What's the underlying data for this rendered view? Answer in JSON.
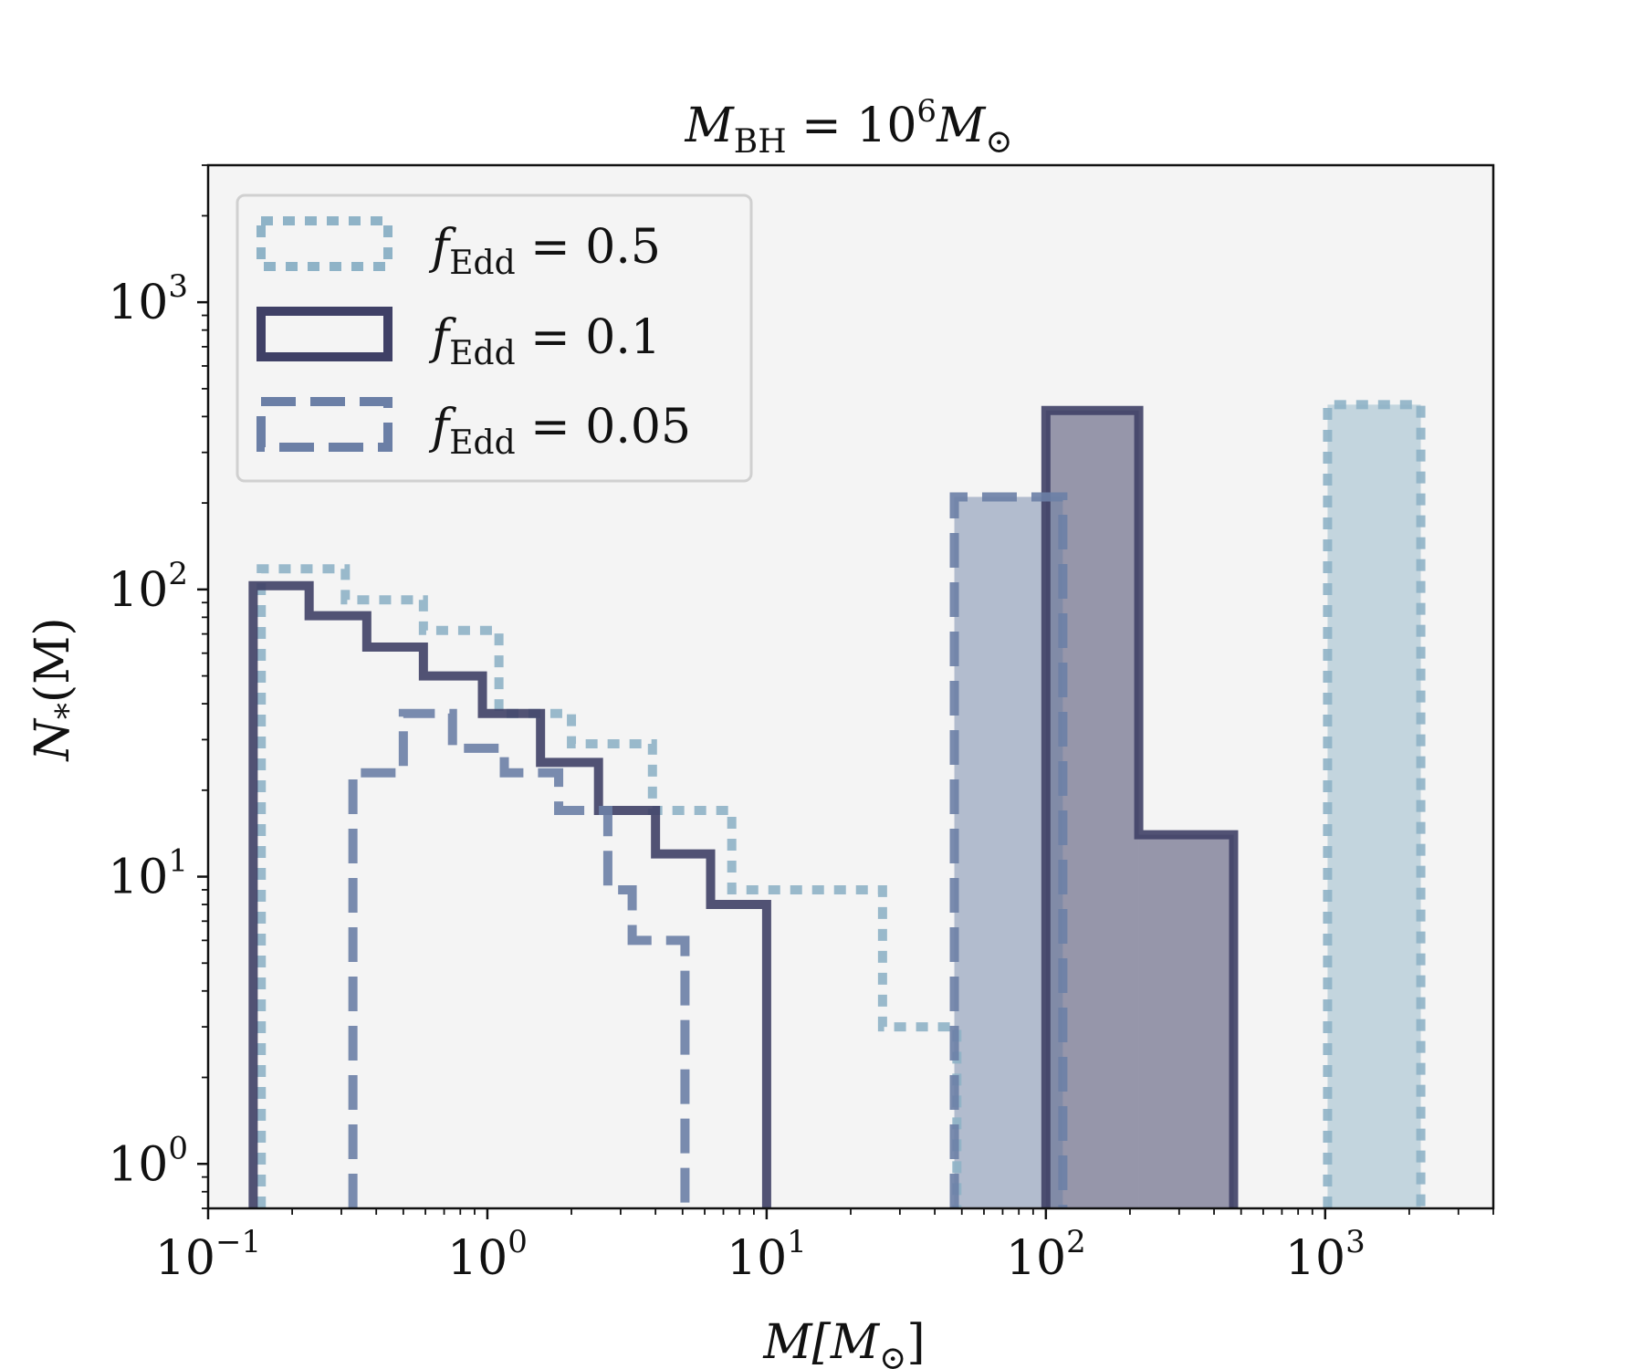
{
  "chart_data": {
    "type": "histogram",
    "title": {
      "base": "M",
      "sub": "BH",
      "mid": " = 10",
      "sup": "6",
      "end": "M",
      "end_sub": "⊙"
    },
    "xlabel": {
      "base": "M[M",
      "sub": "⊙",
      "end": "]"
    },
    "ylabel": {
      "base": "N",
      "sub": "*",
      "end": "(M)"
    },
    "xscale": "log",
    "yscale": "log",
    "xlim": [
      0.1,
      4000
    ],
    "ylim": [
      0.7,
      3000
    ],
    "x_ticks": [
      {
        "value": 0.1,
        "base": "10",
        "exp": "−1"
      },
      {
        "value": 1,
        "base": "10",
        "exp": "0"
      },
      {
        "value": 10,
        "base": "10",
        "exp": "1"
      },
      {
        "value": 100,
        "base": "10",
        "exp": "2"
      },
      {
        "value": 1000,
        "base": "10",
        "exp": "3"
      }
    ],
    "y_ticks": [
      {
        "value": 1,
        "base": "10",
        "exp": "0"
      },
      {
        "value": 10,
        "base": "10",
        "exp": "1"
      },
      {
        "value": 100,
        "base": "10",
        "exp": "2"
      },
      {
        "value": 1000,
        "base": "10",
        "exp": "3"
      }
    ],
    "legend_position": "top-left",
    "series": [
      {
        "name": "f_Edd = 0.5",
        "label_base": "f",
        "label_sub": "Edd",
        "label_val": " = 0.5",
        "style": "dotted",
        "color": "#8fb3c7",
        "unfilled_edges": [
          0.155,
          0.31,
          0.59,
          1.1,
          2.0,
          3.9,
          7.5,
          26,
          48
        ],
        "unfilled_values": [
          118,
          92,
          72,
          37,
          29,
          17,
          9,
          3
        ],
        "filled": [
          {
            "left": 1020,
            "right": 2200,
            "value": 440
          }
        ]
      },
      {
        "name": "f_Edd = 0.1",
        "label_base": "f",
        "label_sub": "Edd",
        "label_val": " = 0.1",
        "style": "solid",
        "color": "#3f4066",
        "unfilled_edges": [
          0.145,
          0.23,
          0.37,
          0.59,
          0.96,
          1.55,
          2.5,
          4.0,
          6.3,
          10.0
        ],
        "unfilled_values": [
          103,
          81,
          63,
          50,
          37,
          25,
          17,
          12,
          8
        ],
        "filled": [
          {
            "left": 100,
            "right": 215,
            "value": 420
          },
          {
            "left": 215,
            "right": 470,
            "value": 14
          }
        ]
      },
      {
        "name": "f_Edd = 0.05",
        "label_base": "f",
        "label_sub": "Edd",
        "label_val": " = 0.05",
        "style": "dashed",
        "color": "#6b7fa6",
        "unfilled_edges": [
          0.33,
          0.5,
          0.75,
          1.15,
          1.8,
          2.7,
          3.3,
          5.1
        ],
        "unfilled_values": [
          23,
          37,
          28,
          23,
          17,
          9,
          6
        ],
        "filled": [
          {
            "left": 47,
            "right": 115,
            "value": 210
          }
        ]
      }
    ]
  }
}
